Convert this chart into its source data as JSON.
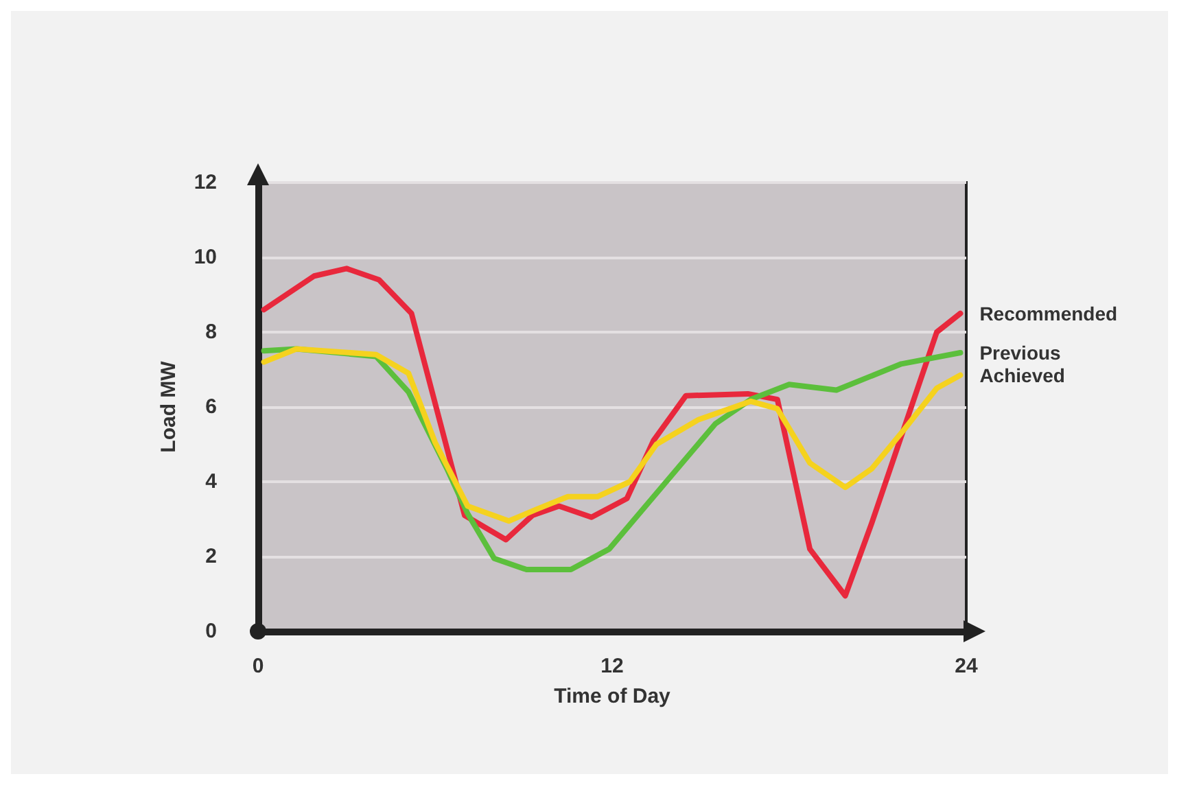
{
  "chart_data": {
    "type": "line",
    "xlabel": "Time of Day",
    "ylabel": "Load MW",
    "xlim": [
      0,
      24
    ],
    "xticks": [
      0,
      12,
      24
    ],
    "ylim": [
      0,
      12
    ],
    "yticks": [
      0,
      2,
      4,
      6,
      8,
      10,
      12
    ],
    "grid": "y",
    "legend": false,
    "marker": "none",
    "line_style": "solid",
    "series": [
      {
        "name": "Recommended",
        "color": "#e8283c",
        "x": [
          0.2,
          1.9,
          3,
          4.1,
          5.2,
          7,
          8.4,
          9.3,
          10.2,
          11.3,
          12.5,
          13.4,
          14.5,
          16.6,
          17.6,
          18.7,
          19.9,
          20.8,
          23,
          23.8
        ],
        "values": [
          8.6,
          9.5,
          9.7,
          9.4,
          8.5,
          3.1,
          2.45,
          3.1,
          3.35,
          3.05,
          3.55,
          5.1,
          6.3,
          6.35,
          6.2,
          2.2,
          0.95,
          2.9,
          8.0,
          8.5
        ]
      },
      {
        "name": "Previous",
        "color": "#5cbf3c",
        "x": [
          0.2,
          1.3,
          4,
          5.1,
          6.4,
          7.1,
          8,
          9.1,
          10.6,
          11.9,
          15.5,
          16.7,
          18,
          19.6,
          21.8,
          23.8
        ],
        "values": [
          7.5,
          7.55,
          7.35,
          6.4,
          4.35,
          3.15,
          1.95,
          1.65,
          1.65,
          2.2,
          5.55,
          6.2,
          6.6,
          6.45,
          7.15,
          7.45
        ]
      },
      {
        "name": "Achieved",
        "color": "#f5d21e",
        "x": [
          0.2,
          1.3,
          4,
          5.1,
          6,
          7.1,
          8.5,
          9.4,
          10.5,
          11.5,
          12.6,
          13.5,
          14.9,
          16.7,
          17.6,
          18.7,
          19.9,
          20.8,
          21.9,
          23,
          23.8
        ],
        "values": [
          7.2,
          7.55,
          7.4,
          6.9,
          5.05,
          3.35,
          2.95,
          3.25,
          3.6,
          3.6,
          4.0,
          5.0,
          5.65,
          6.15,
          5.95,
          4.5,
          3.85,
          4.35,
          5.4,
          6.5,
          6.85
        ]
      }
    ]
  }
}
